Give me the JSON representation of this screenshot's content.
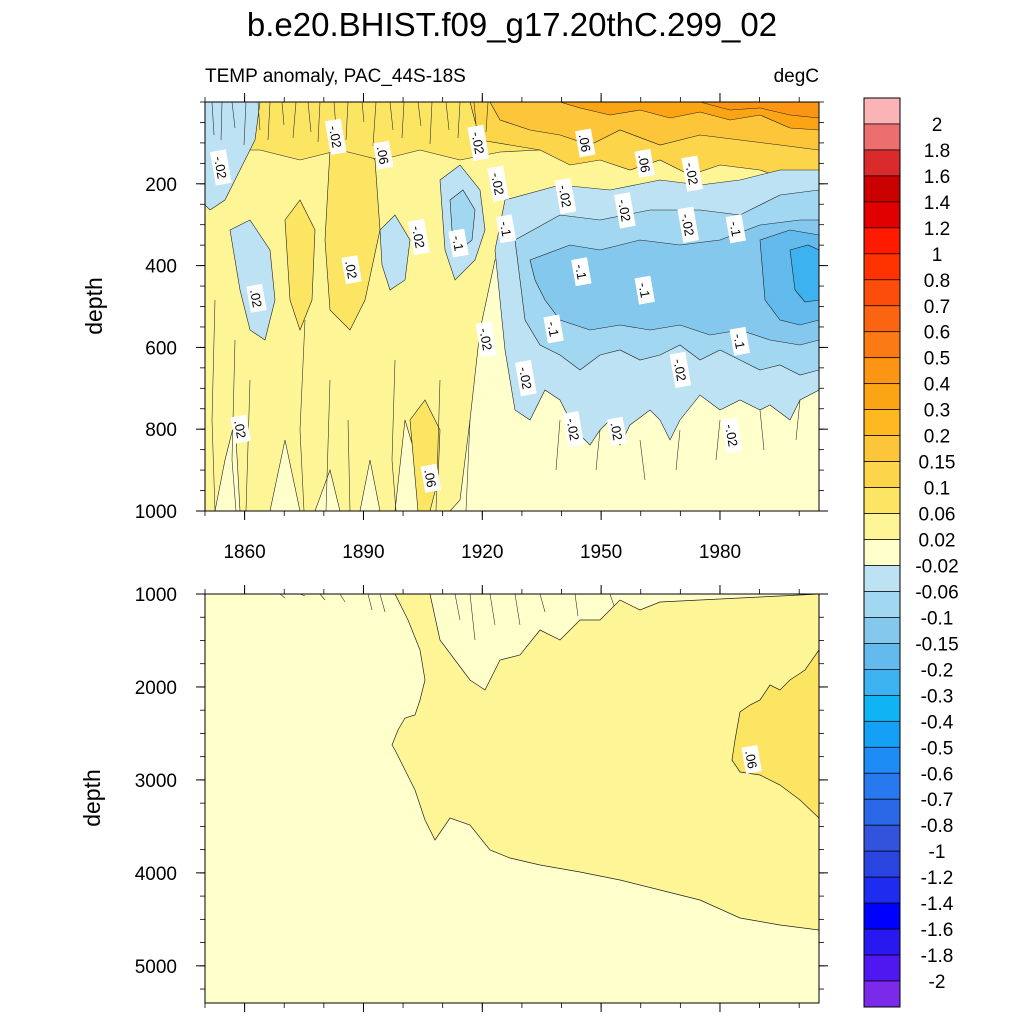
{
  "chart_data": {
    "type": "heatmap",
    "title": "b.e20.BHIST.f09_g17.20thC.299_02",
    "left_subtitle": "TEMP anomaly, PAC_44S-18S",
    "right_subtitle": "degC",
    "xlabel": "",
    "xlim": [
      1850,
      2005
    ],
    "xticks": [
      1860,
      1890,
      1920,
      1950,
      1980
    ],
    "xtick_labels": [
      "1860",
      "1890",
      "1920",
      "1950",
      "1980"
    ],
    "panels": [
      {
        "ylabel": "depth",
        "ylim": [
          0,
          1000
        ],
        "yticks": [
          200,
          400,
          600,
          800,
          1000
        ],
        "ytick_labels": [
          "200",
          "400",
          "600",
          "800",
          "1000"
        ],
        "contour_labels": [
          {
            "text": "-.02",
            "x": 1854,
            "y": 160
          },
          {
            "text": "-.02",
            "x": 1883,
            "y": 85
          },
          {
            "text": ".06",
            "x": 1895,
            "y": 130
          },
          {
            "text": "-.02",
            "x": 1919,
            "y": 100
          },
          {
            "text": "-.02",
            "x": 1924,
            "y": 200
          },
          {
            "text": "-.02",
            "x": 1941,
            "y": 230
          },
          {
            "text": ".06",
            "x": 1946,
            "y": 100
          },
          {
            "text": ".06",
            "x": 1961,
            "y": 150
          },
          {
            "text": "-.02",
            "x": 1973,
            "y": 175
          },
          {
            "text": "-.02",
            "x": 1956,
            "y": 265
          },
          {
            "text": "-.02",
            "x": 1972,
            "y": 300
          },
          {
            "text": "-.1",
            "x": 1926,
            "y": 310
          },
          {
            "text": "-.1",
            "x": 1914,
            "y": 345
          },
          {
            "text": "-.1",
            "x": 1984,
            "y": 310
          },
          {
            "text": "-.02",
            "x": 1904,
            "y": 330
          },
          {
            "text": ".02",
            "x": 1887,
            "y": 410
          },
          {
            "text": "-.1",
            "x": 1945,
            "y": 415
          },
          {
            "text": "-.1",
            "x": 1961,
            "y": 460
          },
          {
            "text": ".02",
            "x": 1863,
            "y": 480
          },
          {
            "text": "-.1",
            "x": 1938,
            "y": 555
          },
          {
            "text": "-.1",
            "x": 1985,
            "y": 585
          },
          {
            "text": "-.02",
            "x": 1921,
            "y": 580
          },
          {
            "text": "-.02",
            "x": 1931,
            "y": 675
          },
          {
            "text": "-.02",
            "x": 1970,
            "y": 655
          },
          {
            "text": ".02",
            "x": 1859,
            "y": 800
          },
          {
            "text": "-.02",
            "x": 1943,
            "y": 800
          },
          {
            "text": ".02",
            "x": 1954,
            "y": 805
          },
          {
            "text": "-.02",
            "x": 1983,
            "y": 815
          },
          {
            "text": ".06",
            "x": 1907,
            "y": 920
          }
        ]
      },
      {
        "ylabel": "depth",
        "ylim": [
          1000,
          5400
        ],
        "yticks": [
          1000,
          2000,
          3000,
          4000,
          5000
        ],
        "ytick_labels": [
          "1000",
          "2000",
          "3000",
          "4000",
          "5000"
        ],
        "contour_labels": [
          {
            "text": ".06",
            "x": 1988,
            "y": 2780
          }
        ]
      }
    ],
    "colorbar": {
      "levels": [
        "2",
        "1.8",
        "1.6",
        "1.4",
        "1.2",
        "1",
        "0.8",
        "0.7",
        "0.6",
        "0.5",
        "0.4",
        "0.3",
        "0.2",
        "0.15",
        "0.1",
        "0.06",
        "0.02",
        "-0.02",
        "-0.06",
        "-0.1",
        "-0.15",
        "-0.2",
        "-0.3",
        "-0.4",
        "-0.5",
        "-0.6",
        "-0.7",
        "-0.8",
        "-1",
        "-1.2",
        "-1.4",
        "-1.6",
        "-1.8",
        "-2"
      ],
      "colors": [
        "#fbb4b6",
        "#ec6e6f",
        "#d92b2c",
        "#ca0000",
        "#e00000",
        "#ff1a00",
        "#ff3300",
        "#fc4e0a",
        "#fb6410",
        "#fc7a14",
        "#fc9414",
        "#fca514",
        "#fdb91f",
        "#fdc63a",
        "#fdd54b",
        "#fde564",
        "#fef597",
        "#ffffcb",
        "#bde2f3",
        "#a1d7f0",
        "#85c8ee",
        "#62bbec",
        "#3cb2f0",
        "#0fb4f5",
        "#14a0f5",
        "#1e8cf5",
        "#2878f0",
        "#2a68e8",
        "#3254dc",
        "#2a44e0",
        "#1e2cf0",
        "#0000ff",
        "#2a18f0",
        "#5018f0",
        "#7a2ae8"
      ]
    }
  }
}
